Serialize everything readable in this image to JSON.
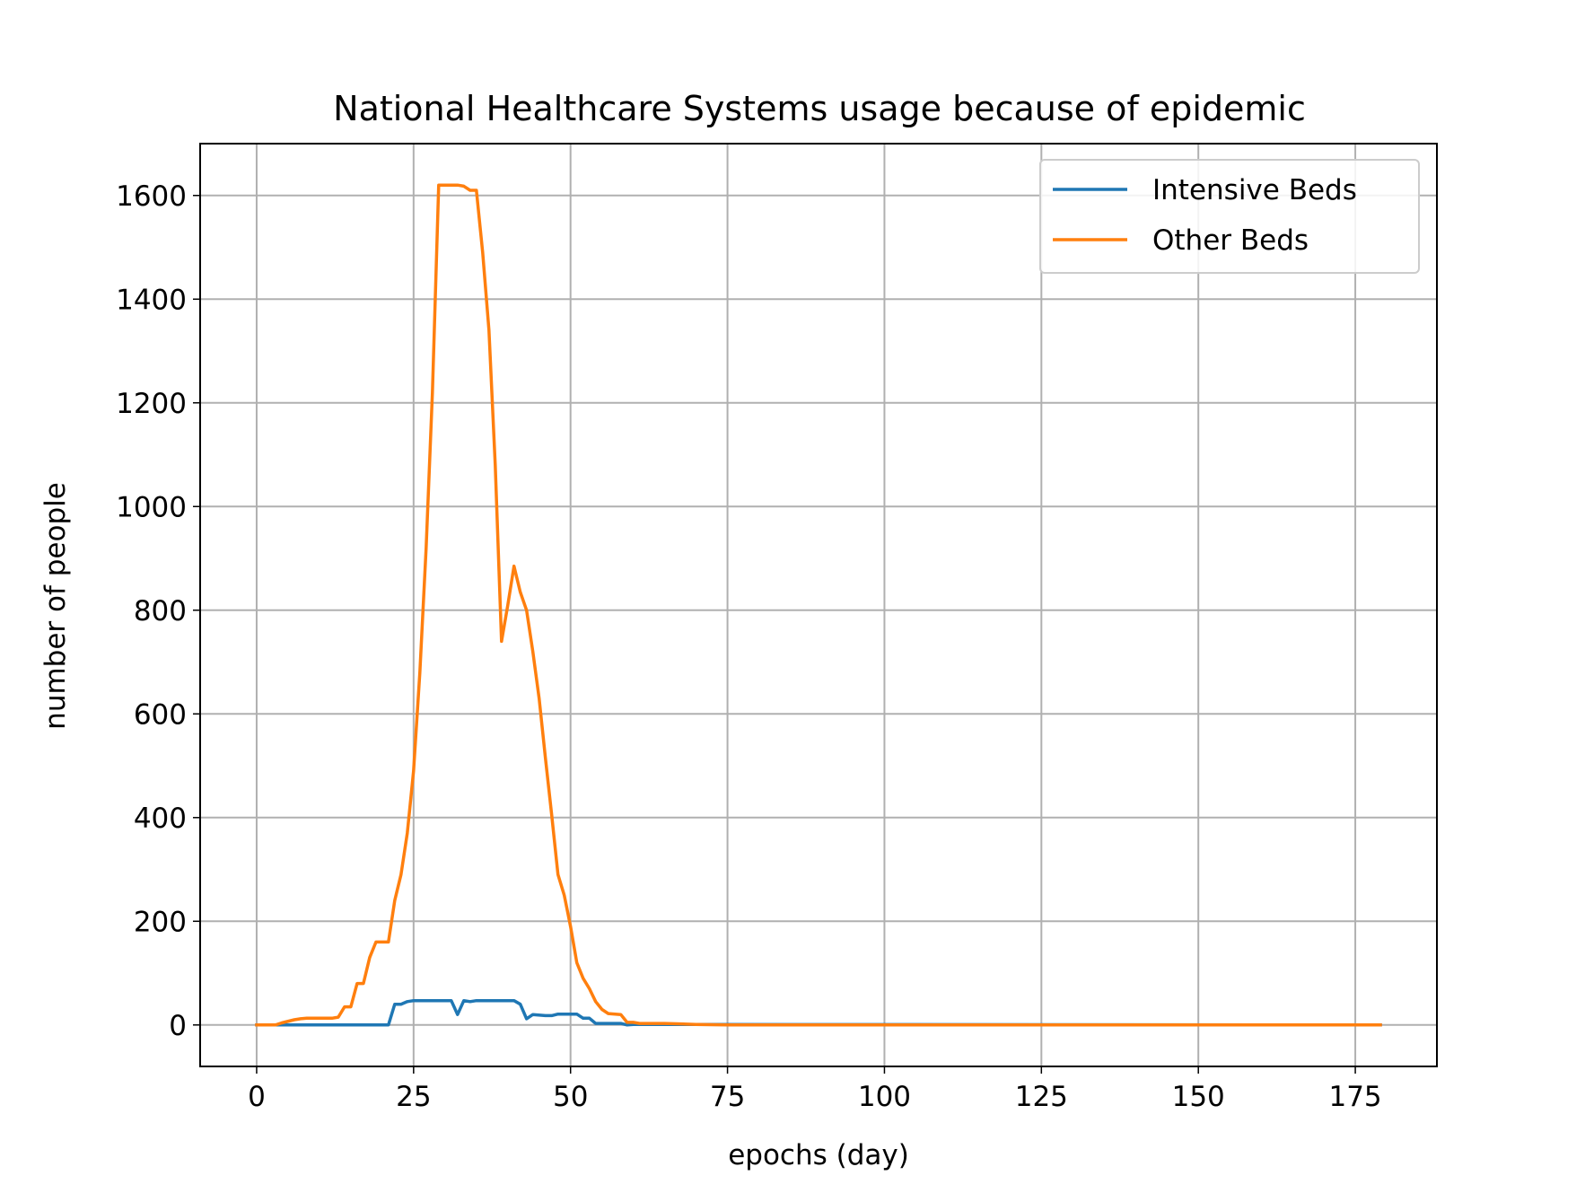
{
  "chart_data": {
    "type": "line",
    "title": "National Healthcare Systems usage because of epidemic",
    "xlabel": "epochs (day)",
    "ylabel": "number of people",
    "xlim": [
      -9,
      188
    ],
    "ylim": [
      -80,
      1700
    ],
    "xticks": [
      0,
      25,
      50,
      75,
      100,
      125,
      150,
      175
    ],
    "yticks": [
      0,
      200,
      400,
      600,
      800,
      1000,
      1200,
      1400,
      1600
    ],
    "grid": true,
    "legend_position": "top-right",
    "series": [
      {
        "name": "Intensive Beds",
        "color": "#1f77b4",
        "points": [
          [
            0,
            0
          ],
          [
            20,
            0
          ],
          [
            21,
            0
          ],
          [
            22,
            40
          ],
          [
            23,
            40
          ],
          [
            24,
            45
          ],
          [
            25,
            47
          ],
          [
            30,
            47
          ],
          [
            31,
            47
          ],
          [
            32,
            20
          ],
          [
            33,
            47
          ],
          [
            34,
            45
          ],
          [
            35,
            47
          ],
          [
            41,
            47
          ],
          [
            42,
            40
          ],
          [
            43,
            12
          ],
          [
            44,
            20
          ],
          [
            46,
            18
          ],
          [
            47,
            18
          ],
          [
            48,
            21
          ],
          [
            51,
            21
          ],
          [
            52,
            13
          ],
          [
            53,
            13
          ],
          [
            54,
            3
          ],
          [
            58,
            3
          ],
          [
            59,
            0
          ],
          [
            60,
            1
          ],
          [
            179,
            0
          ]
        ]
      },
      {
        "name": "Other Beds",
        "color": "#ff7f0e",
        "points": [
          [
            0,
            0
          ],
          [
            3,
            0
          ],
          [
            4,
            4
          ],
          [
            6,
            10
          ],
          [
            7,
            12
          ],
          [
            8,
            13
          ],
          [
            12,
            13
          ],
          [
            13,
            15
          ],
          [
            14,
            35
          ],
          [
            15,
            35
          ],
          [
            16,
            80
          ],
          [
            17,
            80
          ],
          [
            18,
            130
          ],
          [
            19,
            160
          ],
          [
            21,
            160
          ],
          [
            22,
            240
          ],
          [
            23,
            290
          ],
          [
            24,
            370
          ],
          [
            25,
            490
          ],
          [
            26,
            680
          ],
          [
            27,
            920
          ],
          [
            28,
            1220
          ],
          [
            29,
            1620
          ],
          [
            32,
            1620
          ],
          [
            33,
            1618
          ],
          [
            34,
            1610
          ],
          [
            35,
            1610
          ],
          [
            36,
            1490
          ],
          [
            37,
            1340
          ],
          [
            38,
            1080
          ],
          [
            39,
            740
          ],
          [
            40,
            810
          ],
          [
            41,
            885
          ],
          [
            42,
            835
          ],
          [
            43,
            800
          ],
          [
            44,
            720
          ],
          [
            45,
            630
          ],
          [
            46,
            515
          ],
          [
            47,
            405
          ],
          [
            48,
            290
          ],
          [
            49,
            250
          ],
          [
            50,
            190
          ],
          [
            51,
            120
          ],
          [
            52,
            90
          ],
          [
            53,
            70
          ],
          [
            54,
            45
          ],
          [
            55,
            30
          ],
          [
            56,
            22
          ],
          [
            58,
            20
          ],
          [
            59,
            5
          ],
          [
            60,
            5
          ],
          [
            61,
            3
          ],
          [
            65,
            3
          ],
          [
            70,
            1
          ],
          [
            75,
            0
          ],
          [
            179,
            0
          ]
        ]
      }
    ]
  }
}
